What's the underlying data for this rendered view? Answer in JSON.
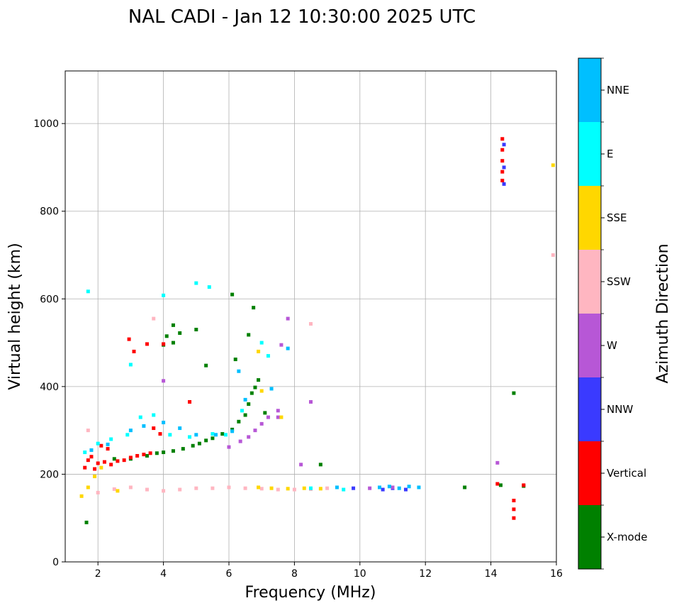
{
  "chart_data": {
    "type": "scatter",
    "title": "NAL CADI - Jan 12 10:30:00 2025 UTC",
    "xlabel": "Frequency (MHz)",
    "ylabel": "Virtual height (km)",
    "xlim": [
      1,
      16
    ],
    "ylim": [
      0,
      1120
    ],
    "xticks": [
      2,
      4,
      6,
      8,
      10,
      12,
      14,
      16
    ],
    "yticks": [
      0,
      200,
      400,
      600,
      800,
      1000
    ],
    "grid": true,
    "colorbar": {
      "title": "Azimuth Direction",
      "categories": [
        {
          "name": "X-mode",
          "color": "#008000"
        },
        {
          "name": "Vertical",
          "color": "#ff0000"
        },
        {
          "name": "NNW",
          "color": "#3a3aff"
        },
        {
          "name": "W",
          "color": "#b757d6"
        },
        {
          "name": "SSW",
          "color": "#ffb6c1"
        },
        {
          "name": "SSE",
          "color": "#ffd700"
        },
        {
          "name": "E",
          "color": "#00ffff"
        },
        {
          "name": "NNE",
          "color": "#00bfff"
        }
      ]
    },
    "series": [
      {
        "name": "X-mode",
        "points": [
          [
            1.65,
            90
          ],
          [
            2.5,
            235
          ],
          [
            3.0,
            235
          ],
          [
            3.5,
            242
          ],
          [
            3.8,
            248
          ],
          [
            4.0,
            250
          ],
          [
            4.3,
            253
          ],
          [
            4.6,
            258
          ],
          [
            4.9,
            265
          ],
          [
            5.1,
            270
          ],
          [
            5.3,
            277
          ],
          [
            5.5,
            282
          ],
          [
            5.8,
            292
          ],
          [
            6.1,
            302
          ],
          [
            6.3,
            320
          ],
          [
            6.5,
            335
          ],
          [
            6.6,
            360
          ],
          [
            6.7,
            385
          ],
          [
            6.8,
            398
          ],
          [
            6.9,
            415
          ],
          [
            4.0,
            495
          ],
          [
            4.3,
            500
          ],
          [
            4.1,
            515
          ],
          [
            4.3,
            540
          ],
          [
            4.5,
            522
          ],
          [
            5.0,
            530
          ],
          [
            5.3,
            448
          ],
          [
            6.1,
            610
          ],
          [
            6.6,
            518
          ],
          [
            6.75,
            580
          ],
          [
            8.8,
            222
          ],
          [
            13.2,
            170
          ],
          [
            14.7,
            385
          ],
          [
            15.0,
            173
          ],
          [
            14.3,
            175
          ],
          [
            6.2,
            462
          ],
          [
            7.1,
            340
          ]
        ]
      },
      {
        "name": "Vertical",
        "points": [
          [
            1.6,
            215
          ],
          [
            1.7,
            232
          ],
          [
            1.8,
            240
          ],
          [
            1.9,
            212
          ],
          [
            2.0,
            225
          ],
          [
            2.1,
            265
          ],
          [
            2.2,
            228
          ],
          [
            2.3,
            258
          ],
          [
            2.4,
            222
          ],
          [
            2.6,
            230
          ],
          [
            2.8,
            232
          ],
          [
            3.0,
            238
          ],
          [
            3.2,
            242
          ],
          [
            3.4,
            245
          ],
          [
            3.6,
            248
          ],
          [
            3.9,
            292
          ],
          [
            3.7,
            305
          ],
          [
            3.1,
            480
          ],
          [
            2.95,
            508
          ],
          [
            3.5,
            497
          ],
          [
            4.0,
            497
          ],
          [
            4.8,
            365
          ],
          [
            14.35,
            965
          ],
          [
            14.35,
            940
          ],
          [
            14.35,
            915
          ],
          [
            14.35,
            890
          ],
          [
            14.35,
            870
          ],
          [
            14.7,
            140
          ],
          [
            14.7,
            120
          ],
          [
            14.7,
            100
          ],
          [
            14.2,
            178
          ],
          [
            15.0,
            175
          ]
        ]
      },
      {
        "name": "NNW",
        "points": [
          [
            10.7,
            165
          ],
          [
            11.0,
            168
          ],
          [
            11.4,
            165
          ],
          [
            14.4,
            952
          ],
          [
            14.4,
            900
          ],
          [
            14.4,
            862
          ],
          [
            9.8,
            168
          ]
        ]
      },
      {
        "name": "W",
        "points": [
          [
            7.0,
            315
          ],
          [
            7.2,
            330
          ],
          [
            7.5,
            345
          ],
          [
            7.5,
            330
          ],
          [
            6.8,
            300
          ],
          [
            6.6,
            285
          ],
          [
            6.35,
            275
          ],
          [
            6.0,
            262
          ],
          [
            8.5,
            365
          ],
          [
            7.8,
            555
          ],
          [
            4.0,
            413
          ],
          [
            7.6,
            495
          ],
          [
            14.2,
            226
          ],
          [
            10.3,
            168
          ],
          [
            11.0,
            170
          ],
          [
            8.2,
            222
          ]
        ]
      },
      {
        "name": "SSW",
        "points": [
          [
            2.0,
            158
          ],
          [
            2.5,
            166
          ],
          [
            3.0,
            170
          ],
          [
            3.5,
            165
          ],
          [
            4.0,
            162
          ],
          [
            4.5,
            165
          ],
          [
            5.0,
            168
          ],
          [
            5.5,
            168
          ],
          [
            6.0,
            170
          ],
          [
            6.5,
            168
          ],
          [
            7.0,
            167
          ],
          [
            7.5,
            165
          ],
          [
            8.0,
            165
          ],
          [
            8.5,
            166
          ],
          [
            9.0,
            168
          ],
          [
            8.5,
            543
          ],
          [
            15.9,
            700
          ],
          [
            3.7,
            555
          ],
          [
            1.7,
            300
          ]
        ]
      },
      {
        "name": "SSE",
        "points": [
          [
            1.5,
            150
          ],
          [
            1.7,
            170
          ],
          [
            1.9,
            195
          ],
          [
            2.1,
            215
          ],
          [
            2.6,
            162
          ],
          [
            6.9,
            170
          ],
          [
            7.3,
            168
          ],
          [
            7.8,
            167
          ],
          [
            8.3,
            168
          ],
          [
            8.8,
            167
          ],
          [
            6.9,
            480
          ],
          [
            7.0,
            390
          ],
          [
            7.6,
            330
          ],
          [
            15.9,
            905
          ]
        ]
      },
      {
        "name": "E",
        "points": [
          [
            1.6,
            250
          ],
          [
            2.0,
            270
          ],
          [
            2.4,
            280
          ],
          [
            2.9,
            290
          ],
          [
            3.3,
            330
          ],
          [
            3.7,
            335
          ],
          [
            4.2,
            290
          ],
          [
            4.8,
            285
          ],
          [
            5.5,
            292
          ],
          [
            5.9,
            290
          ],
          [
            6.4,
            345
          ],
          [
            3.0,
            450
          ],
          [
            4.0,
            608
          ],
          [
            5.0,
            636
          ],
          [
            5.4,
            627
          ],
          [
            1.7,
            617
          ],
          [
            7.0,
            500
          ],
          [
            7.2,
            470
          ],
          [
            9.5,
            165
          ],
          [
            8.5,
            168
          ]
        ]
      },
      {
        "name": "NNE",
        "points": [
          [
            1.8,
            255
          ],
          [
            2.3,
            268
          ],
          [
            3.0,
            300
          ],
          [
            3.4,
            310
          ],
          [
            4.0,
            318
          ],
          [
            4.5,
            305
          ],
          [
            5.0,
            290
          ],
          [
            5.6,
            290
          ],
          [
            6.1,
            298
          ],
          [
            6.5,
            370
          ],
          [
            7.3,
            395
          ],
          [
            7.8,
            487
          ],
          [
            6.3,
            435
          ],
          [
            10.6,
            170
          ],
          [
            10.9,
            172
          ],
          [
            11.2,
            168
          ],
          [
            11.5,
            172
          ],
          [
            11.8,
            170
          ],
          [
            9.3,
            170
          ]
        ]
      }
    ]
  }
}
